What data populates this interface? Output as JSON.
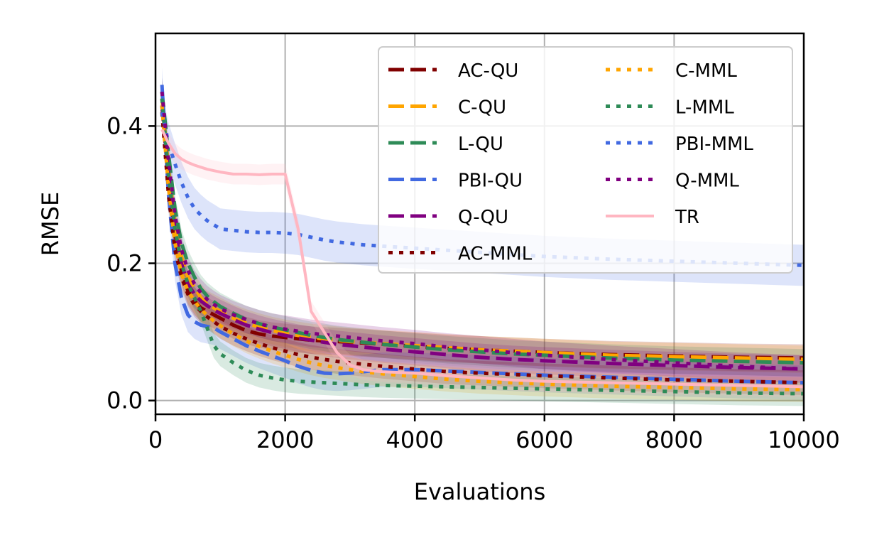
{
  "chart_data": {
    "type": "line",
    "title": "",
    "xlabel": "Evaluations",
    "ylabel": "RMSE",
    "xlim": [
      0,
      10000
    ],
    "ylim": [
      -0.02,
      0.535
    ],
    "xticks": [
      0,
      2000,
      4000,
      6000,
      8000,
      10000
    ],
    "xtick_labels": [
      "0",
      "2000",
      "4000",
      "6000",
      "8000",
      "10000"
    ],
    "yticks": [
      0.0,
      0.2,
      0.4
    ],
    "ytick_labels": [
      "0.0",
      "0.2",
      "0.4"
    ],
    "grid": true,
    "legend": {
      "placement": "top-right",
      "columns": 2
    },
    "x": [
      100,
      200,
      300,
      400,
      500,
      600,
      700,
      800,
      900,
      1000,
      1200,
      1400,
      1600,
      1800,
      2000,
      2200,
      2400,
      2600,
      2800,
      3000,
      3200,
      3500,
      4000,
      4500,
      5000,
      5500,
      6000,
      7000,
      8000,
      9000,
      10000
    ],
    "series": [
      {
        "name": "AC-QU",
        "color": "#800000",
        "dash": "dash",
        "band": 0.02,
        "values": [
          0.43,
          0.32,
          0.24,
          0.19,
          0.16,
          0.145,
          0.135,
          0.13,
          0.125,
          0.12,
          0.11,
          0.102,
          0.097,
          0.094,
          0.092,
          0.09,
          0.088,
          0.087,
          0.086,
          0.085,
          0.084,
          0.082,
          0.079,
          0.076,
          0.074,
          0.072,
          0.07,
          0.067,
          0.065,
          0.063,
          0.062
        ]
      },
      {
        "name": "C-QU",
        "color": "#FFA500",
        "dash": "dash",
        "band": 0.02,
        "values": [
          0.44,
          0.34,
          0.26,
          0.21,
          0.18,
          0.165,
          0.15,
          0.14,
          0.135,
          0.13,
          0.12,
          0.113,
          0.107,
          0.102,
          0.098,
          0.095,
          0.092,
          0.09,
          0.088,
          0.086,
          0.085,
          0.083,
          0.08,
          0.077,
          0.074,
          0.072,
          0.07,
          0.066,
          0.064,
          0.062,
          0.06
        ]
      },
      {
        "name": "L-QU",
        "color": "#2E8B57",
        "dash": "dash",
        "band": 0.02,
        "values": [
          0.45,
          0.36,
          0.28,
          0.23,
          0.2,
          0.18,
          0.163,
          0.152,
          0.144,
          0.137,
          0.127,
          0.118,
          0.112,
          0.107,
          0.103,
          0.099,
          0.095,
          0.092,
          0.089,
          0.087,
          0.085,
          0.082,
          0.078,
          0.074,
          0.071,
          0.068,
          0.066,
          0.062,
          0.059,
          0.057,
          0.055
        ]
      },
      {
        "name": "PBI-QU",
        "color": "#4169E1",
        "dash": "dash",
        "band": 0.025,
        "values": [
          0.46,
          0.3,
          0.2,
          0.15,
          0.125,
          0.115,
          0.11,
          0.108,
          0.106,
          0.1,
          0.09,
          0.08,
          0.072,
          0.065,
          0.058,
          0.05,
          0.044,
          0.04,
          0.039,
          0.04,
          0.042,
          0.045,
          0.045,
          0.043,
          0.041,
          0.039,
          0.037,
          0.034,
          0.031,
          0.028,
          0.026
        ]
      },
      {
        "name": "Q-QU",
        "color": "#800080",
        "dash": "dash",
        "band": 0.02,
        "values": [
          0.43,
          0.33,
          0.25,
          0.2,
          0.17,
          0.155,
          0.145,
          0.138,
          0.132,
          0.127,
          0.118,
          0.11,
          0.104,
          0.099,
          0.095,
          0.091,
          0.088,
          0.085,
          0.082,
          0.08,
          0.078,
          0.075,
          0.071,
          0.067,
          0.063,
          0.06,
          0.058,
          0.054,
          0.051,
          0.048,
          0.046
        ]
      },
      {
        "name": "AC-MML",
        "color": "#800000",
        "dash": "dot",
        "band": 0.018,
        "values": [
          0.42,
          0.3,
          0.22,
          0.18,
          0.155,
          0.14,
          0.13,
          0.122,
          0.115,
          0.108,
          0.098,
          0.09,
          0.083,
          0.077,
          0.072,
          0.067,
          0.063,
          0.06,
          0.057,
          0.055,
          0.053,
          0.05,
          0.046,
          0.042,
          0.04,
          0.038,
          0.036,
          0.033,
          0.03,
          0.028,
          0.026
        ]
      },
      {
        "name": "C-MML",
        "color": "#FFA500",
        "dash": "dot",
        "band": 0.018,
        "values": [
          0.43,
          0.31,
          0.23,
          0.185,
          0.16,
          0.145,
          0.133,
          0.124,
          0.116,
          0.109,
          0.097,
          0.087,
          0.079,
          0.072,
          0.066,
          0.06,
          0.055,
          0.051,
          0.048,
          0.045,
          0.042,
          0.039,
          0.035,
          0.031,
          0.028,
          0.026,
          0.024,
          0.021,
          0.019,
          0.017,
          0.016
        ]
      },
      {
        "name": "L-MML",
        "color": "#2E8B57",
        "dash": "dot",
        "band": 0.018,
        "values": [
          0.44,
          0.33,
          0.25,
          0.2,
          0.17,
          0.15,
          0.13,
          0.105,
          0.08,
          0.068,
          0.055,
          0.044,
          0.037,
          0.033,
          0.03,
          0.028,
          0.027,
          0.026,
          0.025,
          0.024,
          0.023,
          0.022,
          0.021,
          0.02,
          0.019,
          0.018,
          0.017,
          0.015,
          0.013,
          0.011,
          0.01
        ]
      },
      {
        "name": "PBI-MML",
        "color": "#4169E1",
        "dash": "dot",
        "band": 0.03,
        "values": [
          0.42,
          0.375,
          0.345,
          0.318,
          0.296,
          0.28,
          0.27,
          0.262,
          0.256,
          0.25,
          0.248,
          0.246,
          0.245,
          0.245,
          0.244,
          0.242,
          0.238,
          0.234,
          0.231,
          0.229,
          0.227,
          0.225,
          0.222,
          0.219,
          0.216,
          0.213,
          0.21,
          0.206,
          0.203,
          0.2,
          0.197
        ]
      },
      {
        "name": "Q-MML",
        "color": "#800080",
        "dash": "dot",
        "band": 0.02,
        "values": [
          0.45,
          0.35,
          0.27,
          0.22,
          0.19,
          0.17,
          0.157,
          0.147,
          0.14,
          0.134,
          0.125,
          0.118,
          0.112,
          0.107,
          0.104,
          0.101,
          0.098,
          0.096,
          0.094,
          0.092,
          0.09,
          0.087,
          0.083,
          0.078,
          0.074,
          0.07,
          0.066,
          0.06,
          0.055,
          0.05,
          0.046
        ]
      },
      {
        "name": "TR",
        "color": "#FFB6C1",
        "dash": "solid",
        "band": 0.015,
        "values": [
          0.395,
          0.375,
          0.36,
          0.352,
          0.347,
          0.343,
          0.34,
          0.337,
          0.335,
          0.333,
          0.33,
          0.33,
          0.329,
          0.33,
          0.33,
          0.25,
          0.13,
          0.1,
          0.07,
          0.052,
          0.045,
          0.042,
          0.04,
          0.036,
          0.033,
          0.03,
          0.028,
          0.026,
          0.024,
          0.022,
          0.02
        ]
      }
    ]
  }
}
